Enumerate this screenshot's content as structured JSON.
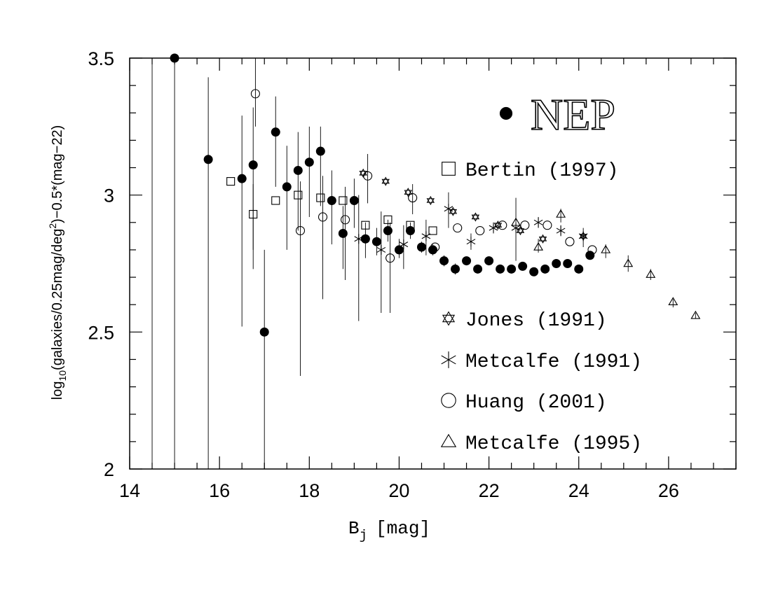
{
  "chart_data": {
    "type": "scatter",
    "xlabel_main": "B",
    "xlabel_sub": "j",
    "xlabel_unit": "[mag]",
    "ylabel_prefix": "log",
    "ylabel_sub": "10",
    "ylabel_mid": "(galaxies/0.25mag/deg",
    "ylabel_sup": "2",
    "ylabel_suffix": ")−0.5*(mag−22)",
    "xlim": [
      14,
      27.5
    ],
    "ylim": [
      2,
      3.5
    ],
    "x_ticks": [
      14,
      16,
      18,
      20,
      22,
      24,
      26
    ],
    "y_ticks": [
      {
        "value": 2,
        "label": "2"
      },
      {
        "value": 2.5,
        "label": "2.5"
      },
      {
        "value": 3,
        "label": "3"
      },
      {
        "value": 3.5,
        "label": "3.5"
      }
    ],
    "series": [
      {
        "name": "NEP",
        "marker": "filled-circle",
        "points": [
          {
            "x": 15.0,
            "y": 3.5,
            "lo": 2.0,
            "hi": 3.5
          },
          {
            "x": 15.75,
            "y": 3.13,
            "lo": 2.0,
            "hi": 3.43
          },
          {
            "x": 16.5,
            "y": 3.06,
            "lo": 2.52,
            "hi": 3.29
          },
          {
            "x": 16.75,
            "y": 3.11,
            "lo": 2.73,
            "hi": 3.32
          },
          {
            "x": 17.0,
            "y": 2.5,
            "lo": 2.0,
            "hi": 2.8
          },
          {
            "x": 17.25,
            "y": 3.23,
            "lo": 3.03,
            "hi": 3.36
          },
          {
            "x": 17.5,
            "y": 3.03,
            "lo": 2.8,
            "hi": 3.18
          },
          {
            "x": 17.75,
            "y": 3.09,
            "lo": 2.87,
            "hi": 3.23
          },
          {
            "x": 18.0,
            "y": 3.12,
            "lo": 2.92,
            "hi": 3.25
          },
          {
            "x": 18.25,
            "y": 3.16,
            "lo": 2.96,
            "hi": 3.25
          },
          {
            "x": 18.5,
            "y": 2.98,
            "lo": 2.82,
            "hi": 3.09
          },
          {
            "x": 18.75,
            "y": 2.86,
            "lo": 2.73,
            "hi": 2.96
          },
          {
            "x": 19.0,
            "y": 2.98,
            "lo": 2.88,
            "hi": 3.06
          },
          {
            "x": 19.25,
            "y": 2.84,
            "lo": 2.77,
            "hi": 2.9
          },
          {
            "x": 19.5,
            "y": 2.83,
            "lo": 2.78,
            "hi": 2.88
          },
          {
            "x": 19.75,
            "y": 2.87,
            "lo": 2.83,
            "hi": 2.91
          },
          {
            "x": 20.0,
            "y": 2.8,
            "lo": 2.77,
            "hi": 2.84
          },
          {
            "x": 20.25,
            "y": 2.87,
            "lo": 2.84,
            "hi": 2.9
          },
          {
            "x": 20.5,
            "y": 2.81,
            "lo": 2.79,
            "hi": 2.83
          },
          {
            "x": 20.75,
            "y": 2.8,
            "lo": 2.78,
            "hi": 2.82
          },
          {
            "x": 21.0,
            "y": 2.76,
            "lo": 2.74,
            "hi": 2.78
          },
          {
            "x": 21.25,
            "y": 2.73,
            "lo": 2.71,
            "hi": 2.75
          },
          {
            "x": 21.5,
            "y": 2.76,
            "lo": 2.75,
            "hi": 2.77
          },
          {
            "x": 21.75,
            "y": 2.73,
            "lo": 2.72,
            "hi": 2.74
          },
          {
            "x": 22.0,
            "y": 2.76,
            "lo": 2.75,
            "hi": 2.77
          },
          {
            "x": 22.25,
            "y": 2.73,
            "lo": 2.72,
            "hi": 2.74
          },
          {
            "x": 22.5,
            "y": 2.73,
            "lo": 2.72,
            "hi": 2.74
          },
          {
            "x": 22.75,
            "y": 2.74,
            "lo": 2.73,
            "hi": 2.75
          },
          {
            "x": 23.0,
            "y": 2.72,
            "lo": 2.71,
            "hi": 2.73
          },
          {
            "x": 23.25,
            "y": 2.73,
            "lo": 2.72,
            "hi": 2.74
          },
          {
            "x": 23.5,
            "y": 2.75,
            "lo": 2.74,
            "hi": 2.76
          },
          {
            "x": 23.75,
            "y": 2.75,
            "lo": 2.74,
            "hi": 2.76
          },
          {
            "x": 24.0,
            "y": 2.73,
            "lo": 2.72,
            "hi": 2.74
          },
          {
            "x": 24.25,
            "y": 2.78,
            "lo": 2.77,
            "hi": 2.79
          }
        ]
      },
      {
        "name": "Bertin (1997)",
        "marker": "open-square",
        "points": [
          {
            "x": 16.25,
            "y": 3.05
          },
          {
            "x": 16.75,
            "y": 2.93,
            "lo": 2.8,
            "hi": 3.04
          },
          {
            "x": 17.25,
            "y": 2.98
          },
          {
            "x": 17.75,
            "y": 3.0
          },
          {
            "x": 18.25,
            "y": 2.99
          },
          {
            "x": 18.75,
            "y": 2.98
          },
          {
            "x": 19.25,
            "y": 2.89
          },
          {
            "x": 19.75,
            "y": 2.91
          },
          {
            "x": 20.25,
            "y": 2.89
          },
          {
            "x": 20.75,
            "y": 2.87
          }
        ]
      },
      {
        "name": "Jones (1991)",
        "marker": "star-of-david",
        "points": [
          {
            "x": 19.2,
            "y": 3.08
          },
          {
            "x": 19.7,
            "y": 3.05
          },
          {
            "x": 20.2,
            "y": 3.01
          },
          {
            "x": 20.7,
            "y": 2.98
          },
          {
            "x": 21.2,
            "y": 2.94
          },
          {
            "x": 21.7,
            "y": 2.92
          },
          {
            "x": 22.2,
            "y": 2.89
          },
          {
            "x": 22.7,
            "y": 2.87
          },
          {
            "x": 23.2,
            "y": 2.84
          },
          {
            "x": 24.1,
            "y": 2.85
          }
        ]
      },
      {
        "name": "Metcalfe (1991)",
        "marker": "asterisk",
        "points": [
          {
            "x": 19.1,
            "y": 2.84,
            "lo": 2.54,
            "hi": 3.0
          },
          {
            "x": 19.6,
            "y": 2.8,
            "lo": 2.57,
            "hi": 2.94
          },
          {
            "x": 20.1,
            "y": 2.82,
            "lo": 2.73,
            "hi": 2.89
          },
          {
            "x": 20.6,
            "y": 2.85,
            "lo": 2.78,
            "hi": 2.91
          },
          {
            "x": 21.1,
            "y": 2.95,
            "lo": 2.88,
            "hi": 3.01
          },
          {
            "x": 21.6,
            "y": 2.83,
            "lo": 2.8,
            "hi": 2.86
          },
          {
            "x": 22.1,
            "y": 2.88,
            "lo": 2.86,
            "hi": 2.9
          },
          {
            "x": 22.6,
            "y": 2.88,
            "lo": 2.76,
            "hi": 2.99
          },
          {
            "x": 23.1,
            "y": 2.9,
            "lo": 2.88,
            "hi": 2.92
          },
          {
            "x": 23.6,
            "y": 2.87,
            "lo": 2.85,
            "hi": 2.89
          },
          {
            "x": 24.1,
            "y": 2.85,
            "lo": 2.81,
            "hi": 2.88
          }
        ]
      },
      {
        "name": "Huang (2001)",
        "marker": "open-circle",
        "points": [
          {
            "x": 16.8,
            "y": 3.37,
            "lo": 3.25,
            "hi": 3.5
          },
          {
            "x": 17.8,
            "y": 2.87,
            "lo": 2.34,
            "hi": 3.05
          },
          {
            "x": 18.3,
            "y": 2.92,
            "lo": 2.62,
            "hi": 3.07
          },
          {
            "x": 18.8,
            "y": 2.91,
            "lo": 2.69,
            "hi": 3.03
          },
          {
            "x": 19.3,
            "y": 3.07,
            "lo": 2.97,
            "hi": 3.15
          },
          {
            "x": 19.8,
            "y": 2.77,
            "lo": 2.57,
            "hi": 2.9
          },
          {
            "x": 20.3,
            "y": 2.99,
            "lo": 2.93,
            "hi": 3.04
          },
          {
            "x": 20.8,
            "y": 2.81
          },
          {
            "x": 21.3,
            "y": 2.88
          },
          {
            "x": 21.8,
            "y": 2.87
          },
          {
            "x": 22.3,
            "y": 2.89
          },
          {
            "x": 22.8,
            "y": 2.89
          },
          {
            "x": 23.3,
            "y": 2.89
          },
          {
            "x": 23.8,
            "y": 2.83
          },
          {
            "x": 24.3,
            "y": 2.8
          }
        ]
      },
      {
        "name": "Metcalfe (1995)",
        "marker": "open-triangle",
        "points": [
          {
            "x": 22.6,
            "y": 2.9
          },
          {
            "x": 23.1,
            "y": 2.81,
            "lo": 2.79,
            "hi": 2.84
          },
          {
            "x": 23.6,
            "y": 2.93,
            "lo": 2.9,
            "hi": 2.95
          },
          {
            "x": 24.6,
            "y": 2.8,
            "lo": 2.77,
            "hi": 2.82
          },
          {
            "x": 25.1,
            "y": 2.75,
            "lo": 2.72,
            "hi": 2.78
          },
          {
            "x": 25.6,
            "y": 2.71,
            "lo": 2.69,
            "hi": 2.73
          },
          {
            "x": 26.1,
            "y": 2.61,
            "lo": 2.59,
            "hi": 2.62
          },
          {
            "x": 26.6,
            "y": 2.56,
            "lo": 2.55,
            "hi": 2.57
          }
        ]
      }
    ],
    "legend": [
      {
        "label": "NEP",
        "marker": "filled-circle"
      },
      {
        "label": "Bertin (1997)",
        "marker": "open-square"
      },
      {
        "label": "Jones (1991)",
        "marker": "star-of-david"
      },
      {
        "label": "Metcalfe (1991)",
        "marker": "asterisk"
      },
      {
        "label": "Huang (2001)",
        "marker": "open-circle"
      },
      {
        "label": "Metcalfe (1995)",
        "marker": "open-triangle"
      }
    ]
  }
}
